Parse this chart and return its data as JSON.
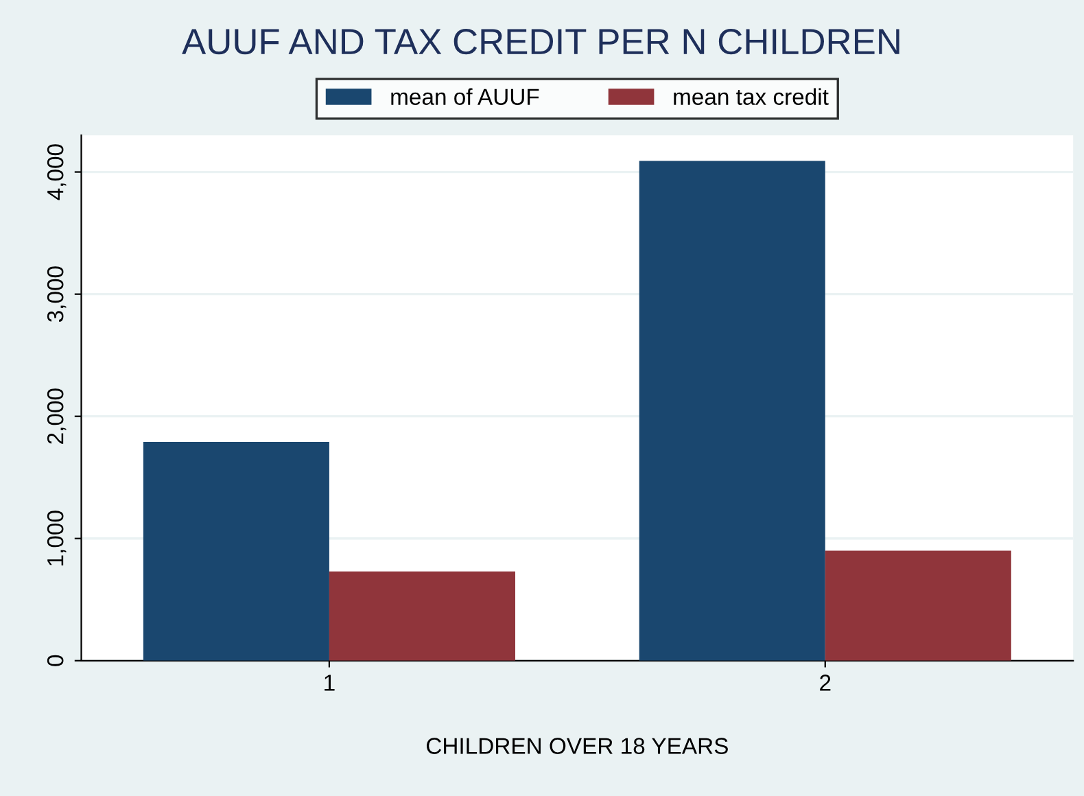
{
  "chart_data": {
    "type": "bar",
    "title": "AUUF AND TAX CREDIT PER N CHILDREN",
    "xlabel": "CHILDREN OVER 18 YEARS",
    "categories": [
      "1",
      "2"
    ],
    "series": [
      {
        "name": "mean of AUUF",
        "color": "#1a476f",
        "values": [
          1790,
          4090
        ]
      },
      {
        "name": "mean tax credit",
        "color": "#90353b",
        "values": [
          730,
          900
        ]
      }
    ],
    "ylim": [
      0,
      4300
    ],
    "yticks": [
      {
        "value": 0,
        "label": "0"
      },
      {
        "value": 1000,
        "label": "1,000"
      },
      {
        "value": 2000,
        "label": "2,000"
      },
      {
        "value": 3000,
        "label": "3,000"
      },
      {
        "value": 4000,
        "label": "4,000"
      }
    ],
    "grid": "y",
    "legend": "top"
  }
}
